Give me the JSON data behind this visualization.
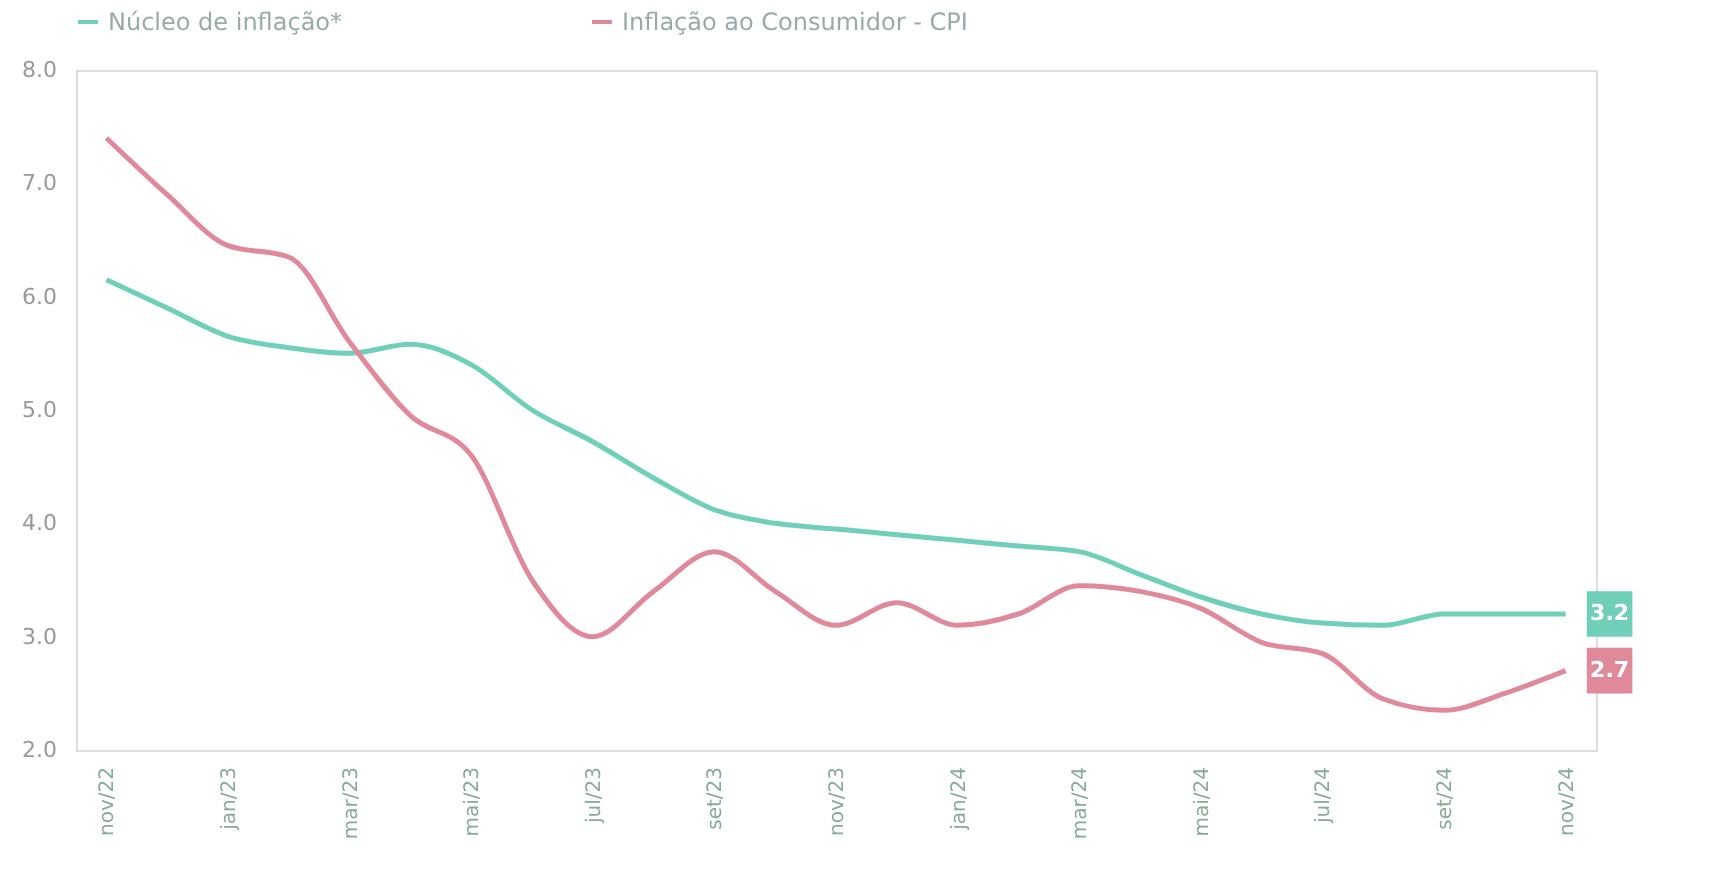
{
  "chart_data": {
    "type": "line",
    "categories": [
      "nov/22",
      null,
      "jan/23",
      null,
      "mar/23",
      null,
      "mai/23",
      null,
      "jul/23",
      null,
      "set/23",
      null,
      "nov/23",
      null,
      "jan/24",
      null,
      "mar/24",
      null,
      "mai/24",
      null,
      "jul/24",
      null,
      "set/24",
      null,
      "nov/24"
    ],
    "series": [
      {
        "name": "Núcleo de inflação*",
        "color": "#6fcfb8",
        "values": [
          6.15,
          5.9,
          5.65,
          5.55,
          5.5,
          5.58,
          5.4,
          5.0,
          4.72,
          4.4,
          4.12,
          4.0,
          3.95,
          3.9,
          3.85,
          3.8,
          3.75,
          3.55,
          3.35,
          3.2,
          3.12,
          3.1,
          3.2,
          3.2,
          3.2
        ]
      },
      {
        "name": "Inflação ao Consumidor - CPI",
        "color": "#e0899a",
        "values": [
          7.4,
          6.9,
          6.45,
          6.35,
          5.6,
          4.95,
          4.6,
          3.5,
          3.0,
          3.4,
          3.75,
          3.4,
          3.1,
          3.3,
          3.1,
          3.2,
          3.45,
          3.4,
          3.25,
          2.95,
          2.85,
          2.45,
          2.35,
          2.5,
          2.7
        ]
      }
    ],
    "ylim": [
      2,
      8
    ],
    "yticks": [
      {
        "value": 2,
        "label": "2.0"
      },
      {
        "value": 3,
        "label": "3.0"
      },
      {
        "value": 4,
        "label": "4.0"
      },
      {
        "value": 5,
        "label": "5.0"
      },
      {
        "value": 6,
        "label": "6.0"
      },
      {
        "value": 7,
        "label": "7.0"
      },
      {
        "value": 8,
        "label": "8.0"
      }
    ],
    "annotations": [
      {
        "text": "3.2",
        "x": "nov/24",
        "y": 3.2
      },
      {
        "text": "2.7",
        "x": "nov/24",
        "y": 2.7
      }
    ],
    "grid": false,
    "legend": "top",
    "marker": "none",
    "line_style": "solid"
  }
}
